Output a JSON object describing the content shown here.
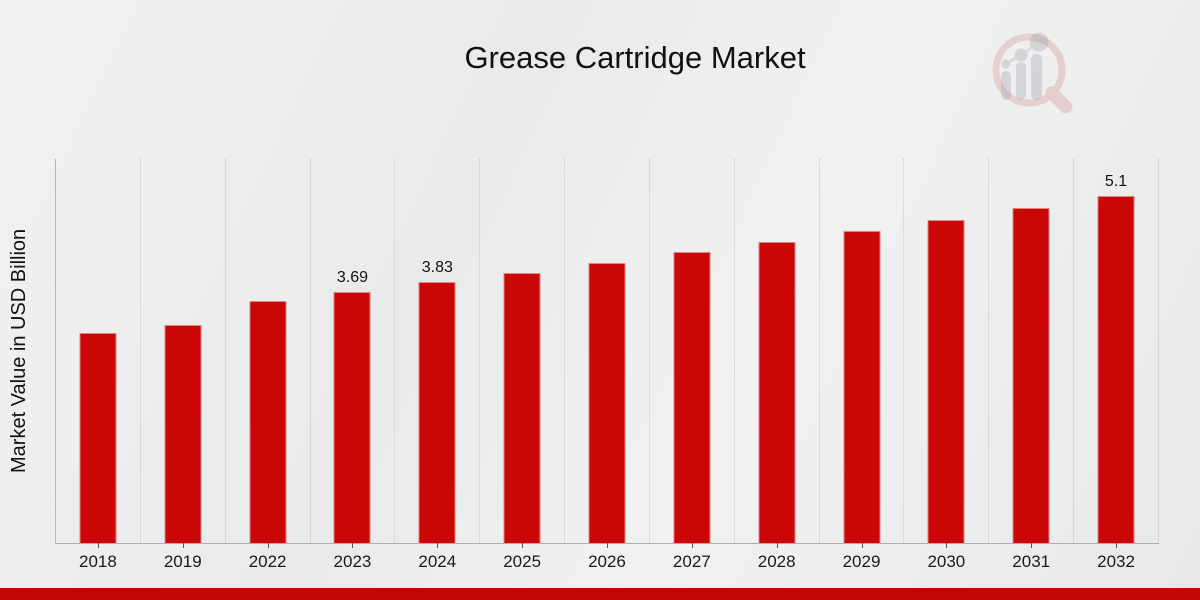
{
  "chart_data": {
    "type": "bar",
    "title": "Grease Cartridge Market",
    "xlabel": "",
    "ylabel": "Market Value in USD Billion",
    "categories": [
      "2018",
      "2019",
      "2022",
      "2023",
      "2024",
      "2025",
      "2026",
      "2027",
      "2028",
      "2029",
      "2030",
      "2031",
      "2032"
    ],
    "values": [
      3.08,
      3.2,
      3.56,
      3.69,
      3.83,
      3.97,
      4.12,
      4.27,
      4.42,
      4.58,
      4.75,
      4.92,
      5.1
    ],
    "bar_labels": [
      "",
      "",
      "",
      "3.69",
      "3.83",
      "",
      "",
      "",
      "",
      "",
      "",
      "",
      "5.1"
    ],
    "ylim": [
      0,
      5.64
    ],
    "bar_color": "#cb0606",
    "grid": "vertical dotted lines between categories, no horizontal gridlines, no y-axis tick labels",
    "legend": "none"
  },
  "footer": {
    "accent_color": "#c00606"
  },
  "watermark": {
    "name": "magnifier-bar-chart-logo",
    "ring_color": "#cf9191",
    "bars_color": "#a9a9b2"
  }
}
